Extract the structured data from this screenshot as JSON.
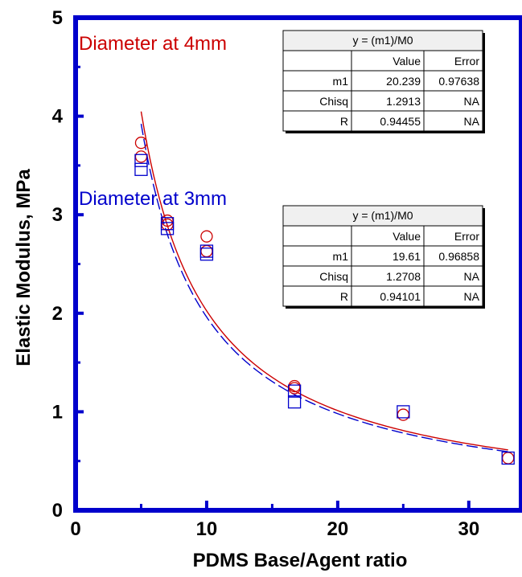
{
  "chart_data": {
    "type": "scatter",
    "xlabel": "PDMS Base/Agent ratio",
    "ylabel": "Elastic Modulus, MPa",
    "xlim": [
      0,
      34
    ],
    "ylim": [
      0,
      5
    ],
    "x_ticks": [
      "0",
      "10",
      "20",
      "30"
    ],
    "y_ticks": [
      "0",
      "1",
      "2",
      "3",
      "4",
      "5"
    ],
    "grid": false,
    "series": [
      {
        "name": "Diameter at 4mm",
        "marker": "circle",
        "color": "#cc0000",
        "points": [
          [
            5,
            3.73
          ],
          [
            5,
            3.59
          ],
          [
            7,
            2.94
          ],
          [
            7,
            2.9
          ],
          [
            10,
            2.78
          ],
          [
            10,
            2.63
          ],
          [
            16.7,
            1.26
          ],
          [
            16.7,
            1.24
          ],
          [
            25,
            0.97
          ],
          [
            33,
            0.53
          ]
        ],
        "fit": {
          "equation": "y = (m1)/M0",
          "m1": 20.239,
          "x_range": [
            5,
            33
          ]
        },
        "table": {
          "title": "y = (m1)/M0",
          "headers": [
            "",
            "Value",
            "Error"
          ],
          "rows": [
            [
              "m1",
              "20.239",
              "0.97638"
            ],
            [
              "Chisq",
              "1.2913",
              "NA"
            ],
            [
              "R",
              "0.94455",
              "NA"
            ]
          ]
        }
      },
      {
        "name": "Diameter at 3mm",
        "marker": "square",
        "color": "#0000cc",
        "points": [
          [
            5,
            3.55
          ],
          [
            5,
            3.46
          ],
          [
            7,
            2.91
          ],
          [
            7,
            2.86
          ],
          [
            10,
            2.63
          ],
          [
            10,
            2.6
          ],
          [
            16.7,
            1.21
          ],
          [
            16.7,
            1.1
          ],
          [
            25,
            1.0
          ],
          [
            33,
            0.53
          ]
        ],
        "fit": {
          "equation": "y = (m1)/M0",
          "m1": 19.61,
          "x_range": [
            5,
            33
          ]
        },
        "table": {
          "title": "y = (m1)/M0",
          "headers": [
            "",
            "Value",
            "Error"
          ],
          "rows": [
            [
              "m1",
              "19.61",
              "0.96858"
            ],
            [
              "Chisq",
              "1.2708",
              "NA"
            ],
            [
              "R",
              "0.94101",
              "NA"
            ]
          ]
        }
      }
    ]
  }
}
